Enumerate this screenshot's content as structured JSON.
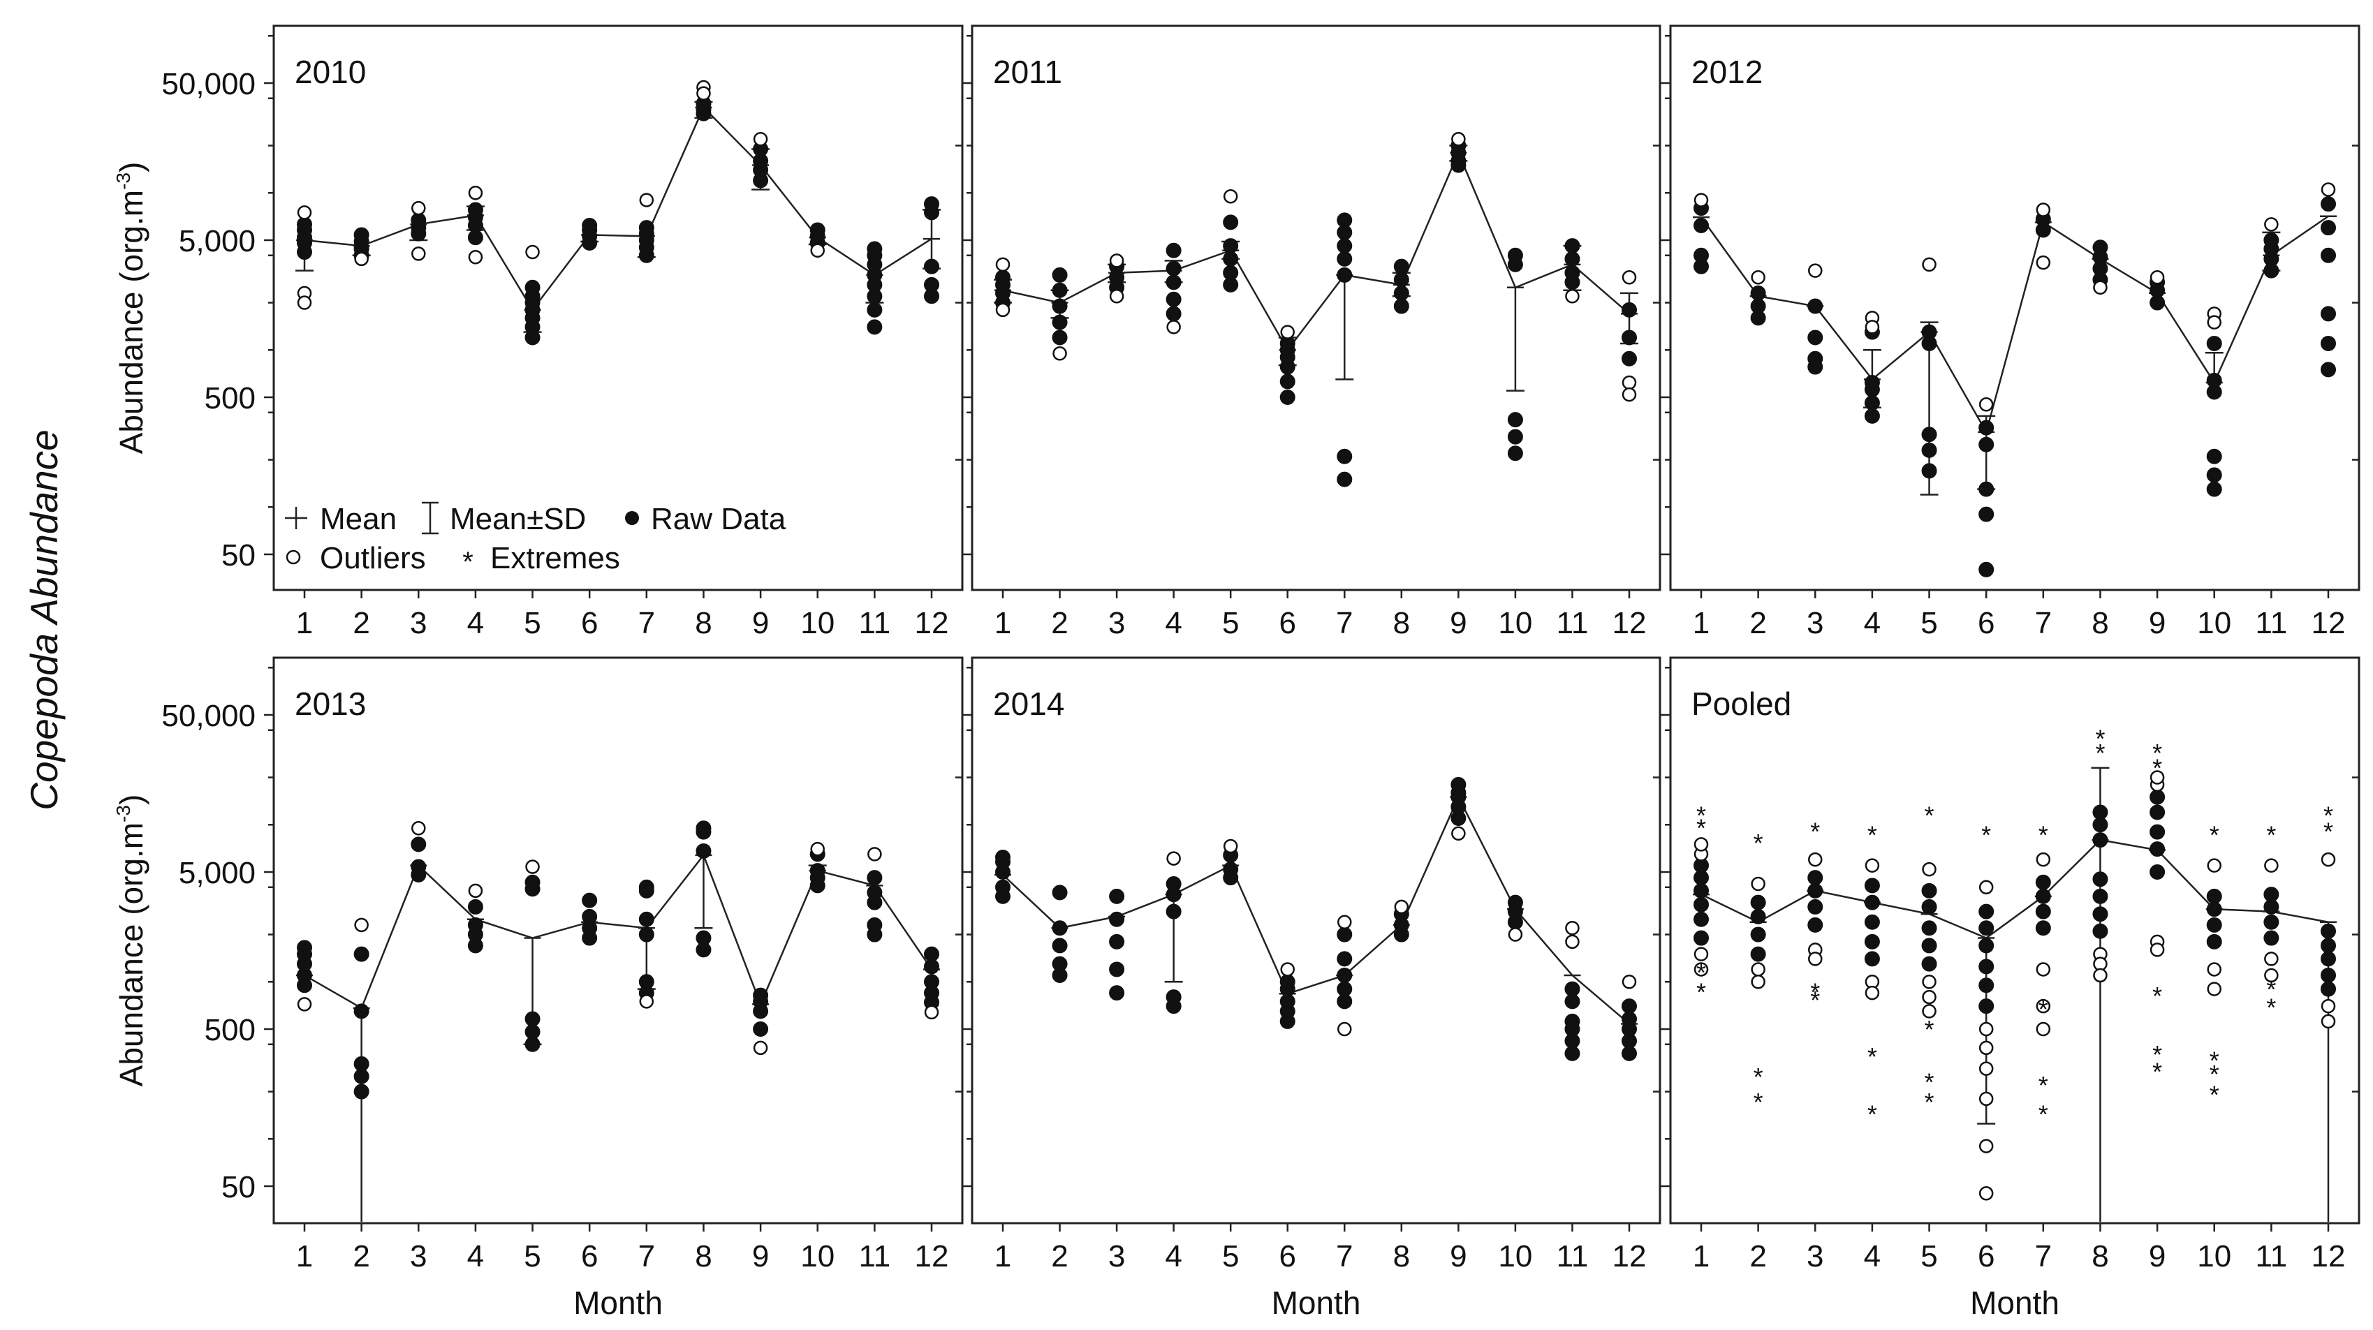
{
  "figure": {
    "ylabel": "Copepoda Abundance",
    "panel_ylabel": "Abundance (org.m",
    "panel_ylabel_sup": "-3",
    "panel_ylabel_close": ")",
    "xlabel": "Month",
    "legend": {
      "mean": "Mean",
      "sd": "Mean±SD",
      "raw": "Raw Data",
      "outliers": "Outliers",
      "extremes": "Extremes"
    }
  },
  "chart_data": [
    {
      "type": "scatter",
      "title": "2010",
      "xlabel": "",
      "ylabel": "Abundance (org.m-3)",
      "y_scale": "log",
      "ylim": [
        25,
        60000
      ],
      "y_ticks": [
        "50",
        "500",
        "5,000",
        "50,000"
      ],
      "y_tick_values": [
        50,
        500,
        5000,
        50000
      ],
      "categories": [
        "1",
        "2",
        "3",
        "4",
        "5",
        "6",
        "7",
        "8",
        "9",
        "10",
        "11",
        "12"
      ],
      "mean": [
        5000,
        4600,
        6300,
        7200,
        1800,
        5400,
        5300,
        35000,
        15000,
        5200,
        3000,
        5100
      ],
      "sd_low": [
        3200,
        4000,
        5000,
        5800,
        1300,
        4900,
        3900,
        30000,
        10500,
        4700,
        2000,
        3300
      ],
      "sd_high": [
        null,
        null,
        null,
        8200,
        null,
        null,
        null,
        38000,
        19000,
        null,
        null,
        7800
      ],
      "raw": [
        [
          4200,
          4800,
          5200,
          5800,
          6300
        ],
        [
          4000,
          4400,
          4900,
          5400
        ],
        [
          5500,
          6000,
          6700
        ],
        [
          5200,
          6200,
          7000,
          7800
        ],
        [
          1200,
          1400,
          1600,
          1800,
          2000,
          2200,
          2500
        ],
        [
          4800,
          5300,
          5800,
          6200
        ],
        [
          4000,
          4500,
          5000,
          5500,
          6000
        ],
        [
          32000,
          34000,
          37000
        ],
        [
          12000,
          14000,
          16000,
          19000
        ],
        [
          4800,
          5300,
          5800
        ],
        [
          1400,
          1800,
          2200,
          2600,
          3000,
          3500,
          4000,
          4400
        ],
        [
          2200,
          2600,
          3400,
          7500,
          8500
        ]
      ],
      "outliers": [
        [
          7500,
          2300,
          2000
        ],
        [
          3800
        ],
        [
          4100,
          8000
        ],
        [
          10000,
          3900
        ],
        [
          4200
        ],
        [],
        [
          9000
        ],
        [
          47000,
          43000
        ],
        [
          22000
        ],
        [
          4300
        ],
        [],
        []
      ],
      "extremes": [
        [],
        [],
        [],
        [],
        [],
        [],
        [],
        [],
        [],
        [],
        [],
        []
      ]
    },
    {
      "type": "scatter",
      "title": "2011",
      "xlabel": "",
      "ylabel": "",
      "y_scale": "log",
      "ylim": [
        25,
        60000
      ],
      "y_ticks": [
        "50",
        "500",
        "5,000",
        "50,000"
      ],
      "y_tick_values": [
        50,
        500,
        5000,
        50000
      ],
      "categories": [
        "1",
        "2",
        "3",
        "4",
        "5",
        "6",
        "7",
        "8",
        "9",
        "10",
        "11",
        "12"
      ],
      "mean": [
        2400,
        2000,
        3100,
        3200,
        4300,
        1000,
        3000,
        2600,
        18000,
        2500,
        3500,
        1700
      ],
      "sd_low": [
        2000,
        1600,
        2700,
        2700,
        3800,
        800,
        650,
        2200,
        16000,
        550,
        2400,
        1100
      ],
      "sd_high": [
        2800,
        2400,
        3500,
        3700,
        4900,
        1200,
        null,
        3100,
        20000,
        null,
        4600,
        2300
      ],
      "raw": [
        [
          2000,
          2300,
          2600,
          2900
        ],
        [
          1200,
          1500,
          1900,
          2400,
          3000
        ],
        [
          2500,
          2900,
          3400
        ],
        [
          1700,
          2100,
          2700,
          3300,
          4300
        ],
        [
          2600,
          3100,
          3800,
          4600,
          6500
        ],
        [
          500,
          630,
          780,
          900,
          1000,
          1100
        ],
        [
          150,
          210,
          3000,
          3800,
          4600,
          5600,
          6700
        ],
        [
          1900,
          2300,
          2800,
          3400
        ],
        [
          15000,
          16000,
          18000,
          20000
        ],
        [
          220,
          280,
          360,
          3500,
          4000
        ],
        [
          2700,
          3100,
          3800,
          4600
        ],
        [
          880,
          1200,
          1800
        ]
      ],
      "outliers": [
        [
          1800,
          3500
        ],
        [
          950
        ],
        [
          2200,
          3700
        ],
        [
          1400
        ],
        [
          9500
        ],
        [
          1300
        ],
        [],
        [],
        [
          22000
        ],
        [],
        [
          2200
        ],
        [
          2900,
          620,
          520
        ]
      ],
      "extremes": [
        [],
        [],
        [],
        [],
        [],
        [],
        [],
        [],
        [],
        [],
        [],
        []
      ]
    },
    {
      "type": "scatter",
      "title": "2012",
      "xlabel": "",
      "ylabel": "",
      "y_scale": "log",
      "ylim": [
        25,
        60000
      ],
      "y_ticks": [
        "50",
        "500",
        "5,000",
        "50,000"
      ],
      "y_tick_values": [
        50,
        500,
        5000,
        50000
      ],
      "categories": [
        "1",
        "2",
        "3",
        "4",
        "5",
        "6",
        "7",
        "8",
        "9",
        "10",
        "11",
        "12"
      ],
      "mean": [
        7000,
        2200,
        1900,
        650,
        1300,
        300,
        6500,
        3800,
        2300,
        620,
        4000,
        7100
      ],
      "sd_low": [
        null,
        null,
        null,
        430,
        120,
        130,
        null,
        null,
        null,
        null,
        3200,
        null
      ],
      "sd_high": [
        null,
        null,
        null,
        1000,
        1500,
        380,
        null,
        null,
        null,
        960,
        5600,
        null
      ],
      "raw": [
        [
          3400,
          4000,
          6200,
          8000
        ],
        [
          1600,
          1900,
          2300
        ],
        [
          780,
          880,
          1200,
          1900
        ],
        [
          380,
          460,
          560,
          620,
          1300
        ],
        [
          170,
          230,
          290,
          1100,
          1300
        ],
        [
          40,
          90,
          130,
          250,
          320
        ],
        [
          5800,
          6800
        ],
        [
          2800,
          3300,
          3900,
          4500
        ],
        [
          2000,
          2400,
          2700
        ],
        [
          130,
          160,
          210,
          540,
          640,
          1100
        ],
        [
          3200,
          3800,
          4400,
          5000
        ],
        [
          750,
          1100,
          1700,
          4000,
          6000,
          8500
        ]
      ],
      "outliers": [
        [
          9000
        ],
        [
          2900
        ],
        [
          3200
        ],
        [
          1600,
          1400
        ],
        [
          3500
        ],
        [
          450
        ],
        [
          7800,
          3600
        ],
        [
          2500
        ],
        [
          2900
        ],
        [
          1700,
          1500
        ],
        [
          6300
        ],
        [
          10500
        ]
      ],
      "extremes": [
        [],
        [],
        [],
        [],
        [],
        [],
        [],
        [],
        [],
        [],
        [],
        []
      ]
    },
    {
      "type": "scatter",
      "title": "2013",
      "xlabel": "",
      "ylabel": "",
      "y_scale": "log",
      "ylim": [
        25,
        60000
      ],
      "y_ticks": [
        "50",
        "500",
        "5,000",
        "50,000"
      ],
      "y_tick_values": [
        50,
        500,
        5000,
        50000
      ],
      "categories": [
        "1",
        "2",
        "3",
        "4",
        "5",
        "6",
        "7",
        "8",
        "9",
        "10",
        "11",
        "12"
      ],
      "mean": [
        1100,
        680,
        5500,
        2500,
        1900,
        2400,
        2200,
        6400,
        720,
        5100,
        4100,
        1200
      ],
      "sd_low": [
        null,
        25,
        null,
        null,
        400,
        null,
        900,
        2200,
        null,
        null,
        null,
        null
      ],
      "sd_high": [
        null,
        null,
        null,
        null,
        null,
        null,
        null,
        null,
        null,
        5500,
        null,
        null
      ],
      "raw": [
        [
          950,
          1100,
          1300,
          1500,
          1650
        ],
        [
          200,
          250,
          300,
          650,
          1500
        ],
        [
          4800,
          5400,
          7500
        ],
        [
          1700,
          2000,
          2300,
          3000
        ],
        [
          400,
          480,
          580,
          3900,
          4300
        ],
        [
          1900,
          2200,
          2600,
          3300
        ],
        [
          850,
          1000,
          2000,
          2500,
          3800,
          4000
        ],
        [
          1600,
          1900,
          6800,
          9000,
          9500
        ],
        [
          500,
          650,
          750,
          820
        ],
        [
          4100,
          4600,
          5100,
          6500
        ],
        [
          2000,
          2300,
          3200,
          3700,
          4600
        ],
        [
          740,
          850,
          1000,
          1250,
          1500
        ]
      ],
      "outliers": [
        [
          720
        ],
        [
          2300
        ],
        [
          9500
        ],
        [
          3800
        ],
        [
          5400
        ],
        [],
        [
          750
        ],
        [],
        [
          380
        ],
        [
          7000
        ],
        [
          6500
        ],
        [
          640
        ]
      ],
      "extremes": [
        [],
        [],
        [],
        [],
        [],
        [],
        [],
        [],
        [],
        [],
        [],
        []
      ]
    },
    {
      "type": "scatter",
      "title": "2014",
      "xlabel": "",
      "ylabel": "",
      "y_scale": "log",
      "ylim": [
        25,
        60000
      ],
      "y_ticks": [
        "50",
        "500",
        "5,000",
        "50,000"
      ],
      "y_tick_values": [
        50,
        500,
        5000,
        50000
      ],
      "categories": [
        "1",
        "2",
        "3",
        "4",
        "5",
        "6",
        "7",
        "8",
        "9",
        "10",
        "11",
        "12"
      ],
      "mean": [
        4800,
        2200,
        2600,
        3600,
        5500,
        840,
        1100,
        2300,
        15000,
        2900,
        1100,
        540
      ],
      "sd_low": [
        null,
        null,
        null,
        1000,
        null,
        null,
        null,
        null,
        null,
        null,
        null,
        null
      ],
      "sd_high": [
        null,
        null,
        null,
        null,
        null,
        null,
        null,
        null,
        null,
        null,
        null,
        null
      ],
      "raw": [
        [
          3500,
          4000,
          5000,
          5800,
          6200
        ],
        [
          1100,
          1300,
          1700,
          2200,
          3700
        ],
        [
          850,
          1200,
          1800,
          2500,
          3500
        ],
        [
          700,
          800,
          2800,
          3600,
          4200
        ],
        [
          4600,
          5200,
          6400
        ],
        [
          560,
          650,
          750,
          900,
          1000
        ],
        [
          750,
          900,
          1100,
          1400,
          2000
        ],
        [
          2000,
          2300,
          2700
        ],
        [
          11000,
          13000,
          15000,
          16000,
          18000
        ],
        [
          2400,
          2800,
          3200
        ],
        [
          350,
          420,
          500,
          560,
          750,
          900
        ],
        [
          350,
          420,
          500,
          580,
          700
        ]
      ],
      "outliers": [
        [],
        [],
        [],
        [
          6100
        ],
        [
          7300
        ],
        [
          1200
        ],
        [
          2400,
          500
        ],
        [
          3000
        ],
        [
          8800
        ],
        [
          2000
        ],
        [
          2200,
          1800
        ],
        [
          1000
        ]
      ],
      "extremes": [
        [],
        [],
        [],
        [],
        [],
        [],
        [],
        [],
        [],
        [],
        [],
        []
      ]
    },
    {
      "type": "scatter",
      "title": "Pooled",
      "xlabel": "Month",
      "ylabel": "",
      "y_scale": "log",
      "ylim": [
        25,
        60000
      ],
      "y_ticks": [
        "50",
        "500",
        "5,000",
        "50,000"
      ],
      "y_tick_values": [
        50,
        500,
        5000,
        50000
      ],
      "categories": [
        "1",
        "2",
        "3",
        "4",
        "5",
        "6",
        "7",
        "8",
        "9",
        "10",
        "11",
        "12"
      ],
      "mean": [
        3600,
        2400,
        3800,
        3200,
        2700,
        1900,
        3500,
        8000,
        6900,
        2900,
        2800,
        2400
      ],
      "sd_low": [
        null,
        null,
        null,
        null,
        null,
        125,
        null,
        25,
        null,
        null,
        null,
        25
      ],
      "sd_high": [
        null,
        null,
        null,
        null,
        null,
        null,
        null,
        23000,
        null,
        null,
        null,
        null
      ],
      "raw": [
        [
          1900,
          2500,
          3100,
          3800,
          4600,
          5500
        ],
        [
          1500,
          2000,
          2600,
          3200
        ],
        [
          2300,
          3000,
          3800,
          4600
        ],
        [
          1400,
          1800,
          2400,
          3200,
          4100
        ],
        [
          1300,
          1700,
          2200,
          3000,
          3800
        ],
        [
          700,
          950,
          1250,
          1700,
          2200,
          2800
        ],
        [
          2200,
          2800,
          3500,
          4300
        ],
        [
          2100,
          2700,
          3500,
          4500,
          8000,
          10000,
          12000
        ],
        [
          5000,
          7000,
          9000,
          12000,
          15000
        ],
        [
          1800,
          2300,
          2900,
          3500
        ],
        [
          1900,
          2400,
          3000,
          3600
        ],
        [
          900,
          1100,
          1400,
          1700,
          2100
        ]
      ],
      "outliers": [
        [
          6500,
          7500,
          1500,
          1200
        ],
        [
          4200,
          1200,
          1000
        ],
        [
          6000,
          1600,
          1400
        ],
        [
          5500,
          1000,
          850
        ],
        [
          5200,
          1000,
          800,
          650
        ],
        [
          4000,
          500,
          380,
          280,
          180,
          90,
          45
        ],
        [
          6000,
          1200,
          700,
          500
        ],
        [
          1500,
          1300,
          1100
        ],
        [
          18000,
          20000,
          1800,
          1600
        ],
        [
          5500,
          1200,
          900
        ],
        [
          5500,
          1400,
          1100
        ],
        [
          6000,
          700,
          560
        ]
      ],
      "extremes": [
        [
          1200,
          900,
          10000,
          12000
        ],
        [
          260,
          180,
          8000
        ],
        [
          900,
          800,
          9500
        ],
        [
          350,
          150,
          9000
        ],
        [
          240,
          180,
          520,
          12000
        ],
        [
          9000
        ],
        [
          700,
          230,
          150,
          9000
        ],
        [
          30000,
          37000
        ],
        [
          850,
          360,
          280,
          30000,
          24000
        ],
        [
          330,
          200,
          270,
          9000
        ],
        [
          940,
          720,
          9000
        ],
        [
          9500,
          12000
        ]
      ]
    }
  ]
}
